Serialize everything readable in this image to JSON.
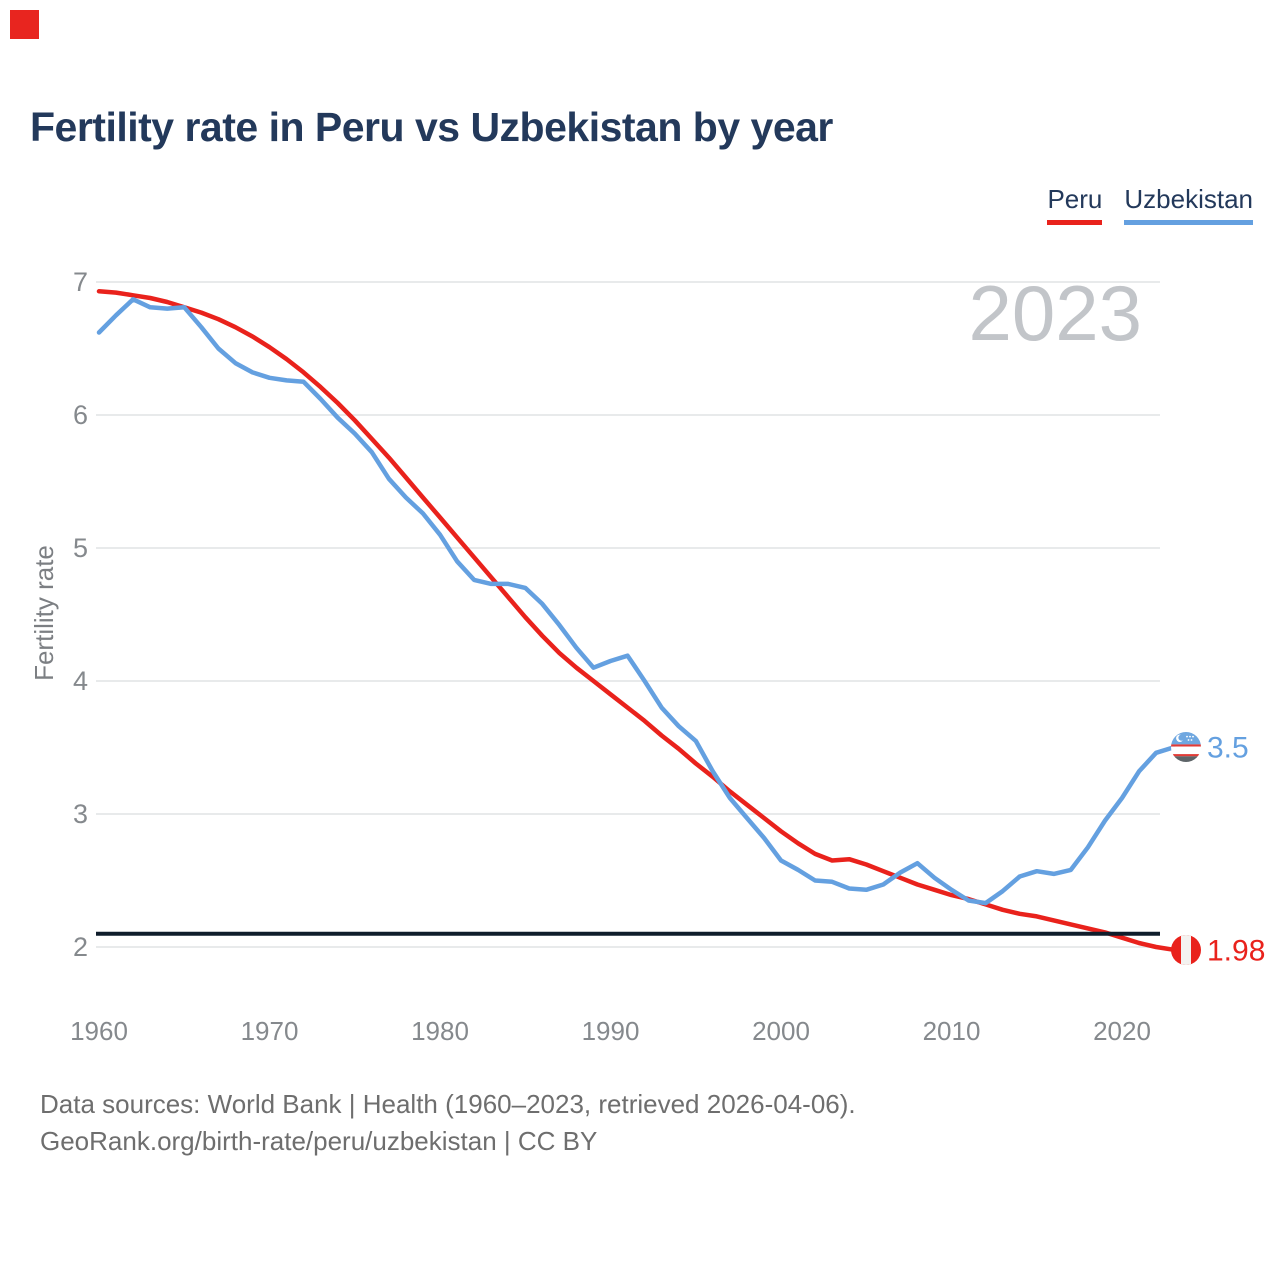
{
  "page": {
    "title": "Fertility rate in Peru vs Uzbekistan by year",
    "watermark_year": "2023"
  },
  "legend": {
    "items": [
      {
        "label": "Peru",
        "color": "#e9221c"
      },
      {
        "label": "Uzbekistan",
        "color": "#64a0e0"
      }
    ]
  },
  "chart_data": {
    "type": "line",
    "title": "Fertility rate in Peru vs Uzbekistan by year",
    "ylabel": "Fertility rate",
    "xlabel": "",
    "grid": "horizontal",
    "legend_position": "top-right",
    "xlim": [
      1960,
      2023
    ],
    "ylim": [
      1.9,
      7.1
    ],
    "yticks": [
      2,
      3,
      4,
      5,
      6,
      7
    ],
    "xticks": [
      1960,
      1970,
      1980,
      1990,
      2000,
      2010,
      2020
    ],
    "x": [
      1960,
      1961,
      1962,
      1963,
      1964,
      1965,
      1966,
      1967,
      1968,
      1969,
      1970,
      1971,
      1972,
      1973,
      1974,
      1975,
      1976,
      1977,
      1978,
      1979,
      1980,
      1981,
      1982,
      1983,
      1984,
      1985,
      1986,
      1987,
      1988,
      1989,
      1990,
      1991,
      1992,
      1993,
      1994,
      1995,
      1996,
      1997,
      1998,
      1999,
      2000,
      2001,
      2002,
      2003,
      2004,
      2005,
      2006,
      2007,
      2008,
      2009,
      2010,
      2011,
      2012,
      2013,
      2014,
      2015,
      2016,
      2017,
      2018,
      2019,
      2020,
      2021,
      2022,
      2023
    ],
    "series": [
      {
        "name": "Peru",
        "color": "#e9221c",
        "values": [
          6.93,
          6.92,
          6.9,
          6.88,
          6.85,
          6.81,
          6.77,
          6.72,
          6.66,
          6.59,
          6.51,
          6.42,
          6.32,
          6.21,
          6.09,
          5.96,
          5.82,
          5.68,
          5.53,
          5.38,
          5.23,
          5.08,
          4.93,
          4.78,
          4.63,
          4.48,
          4.34,
          4.21,
          4.1,
          4.0,
          3.9,
          3.8,
          3.7,
          3.59,
          3.49,
          3.38,
          3.28,
          3.17,
          3.07,
          2.97,
          2.87,
          2.78,
          2.7,
          2.65,
          2.66,
          2.62,
          2.57,
          2.52,
          2.47,
          2.43,
          2.39,
          2.36,
          2.32,
          2.28,
          2.25,
          2.23,
          2.2,
          2.17,
          2.14,
          2.11,
          2.07,
          2.03,
          2.0,
          1.98
        ]
      },
      {
        "name": "Uzbekistan",
        "color": "#64a0e0",
        "values": [
          6.62,
          6.75,
          6.87,
          6.81,
          6.8,
          6.81,
          6.66,
          6.5,
          6.39,
          6.32,
          6.28,
          6.26,
          6.25,
          6.12,
          5.98,
          5.86,
          5.72,
          5.52,
          5.38,
          5.26,
          5.1,
          4.9,
          4.76,
          4.73,
          4.73,
          4.7,
          4.58,
          4.42,
          4.25,
          4.1,
          4.15,
          4.19,
          4.0,
          3.8,
          3.66,
          3.55,
          3.32,
          3.12,
          2.97,
          2.82,
          2.65,
          2.58,
          2.5,
          2.49,
          2.44,
          2.43,
          2.47,
          2.56,
          2.63,
          2.52,
          2.43,
          2.35,
          2.33,
          2.42,
          2.53,
          2.57,
          2.55,
          2.58,
          2.75,
          2.95,
          3.12,
          3.32,
          3.46,
          3.5
        ]
      }
    ],
    "reference_line": {
      "value": 2.1,
      "color": "#0f1d2b"
    },
    "end_labels": [
      {
        "series": "Uzbekistan",
        "value": "3.5",
        "flag": "uzbekistan-flag",
        "color": "#64a0e0"
      },
      {
        "series": "Peru",
        "value": "1.98",
        "flag": "peru-flag",
        "color": "#e9221c"
      }
    ]
  },
  "footer": {
    "line1": "Data sources: World Bank | Health (1960–2023, retrieved 2026-04-06).",
    "line2": "GeoRank.org/birth-rate/peru/uzbekistan | CC BY"
  }
}
